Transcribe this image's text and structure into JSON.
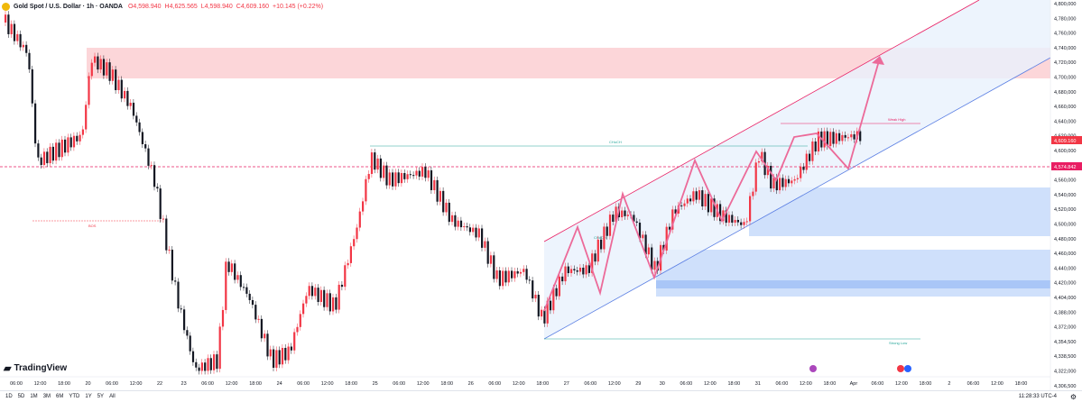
{
  "header": {
    "symbol": "Gold Spot / U.S. Dollar · 1h · OANDA",
    "open": "O4,598.940",
    "high": "H4,625.565",
    "low": "L4,598.940",
    "close": "C4,609.160",
    "change": "+10.145 (+0.22%)"
  },
  "price_axis": [
    "4,800,000",
    "4,780,000",
    "4,760,000",
    "4,740,000",
    "4,720,000",
    "4,700,000",
    "4,680,000",
    "4,660,000",
    "4,640,000",
    "4,620,000",
    "4,600,000",
    "4,580,000",
    "4,560,000",
    "4,540,000",
    "4,520,000",
    "4,500,000",
    "4,480,000",
    "4,460,000",
    "4,440,000",
    "4,420,000",
    "4,404,000",
    "4,388,000",
    "4,372,000",
    "4,354,500",
    "4,338,500",
    "4,322,000",
    "4,306,500"
  ],
  "current_price": "4,609.160",
  "line_price": "4,574.842",
  "time_axis": [
    "06:00",
    "12:00",
    "18:00",
    "20",
    "06:00",
    "12:00",
    "22",
    "23",
    "06:00",
    "12:00",
    "18:00",
    "24",
    "06:00",
    "12:00",
    "18:00",
    "25",
    "06:00",
    "12:00",
    "18:00",
    "26",
    "06:00",
    "12:00",
    "18:00",
    "27",
    "06:00",
    "12:00",
    "29",
    "30",
    "06:00",
    "12:00",
    "18:00",
    "31",
    "06:00",
    "12:00",
    "18:00",
    "Apr",
    "06:00",
    "12:00",
    "18:00",
    "2",
    "06:00",
    "12:00",
    "18:00"
  ],
  "annotations": {
    "choch_top": "CHoCH",
    "weak_high": "Weak High",
    "strong_low": "Strong Low",
    "bos": "BOS",
    "choch_small": "CHoCH"
  },
  "ranges": [
    "1D",
    "5D",
    "1M",
    "3M",
    "6M",
    "YTD",
    "1Y",
    "5Y",
    "All"
  ],
  "clock": "11:28:33 UTC-4",
  "brand": "TradingView",
  "colors": {
    "up": "#f23645",
    "down": "#131722",
    "supply": "#f8c8cc",
    "demand": "#bcd4f8",
    "channel": "#e91e63",
    "accent": "#2962ff"
  }
}
